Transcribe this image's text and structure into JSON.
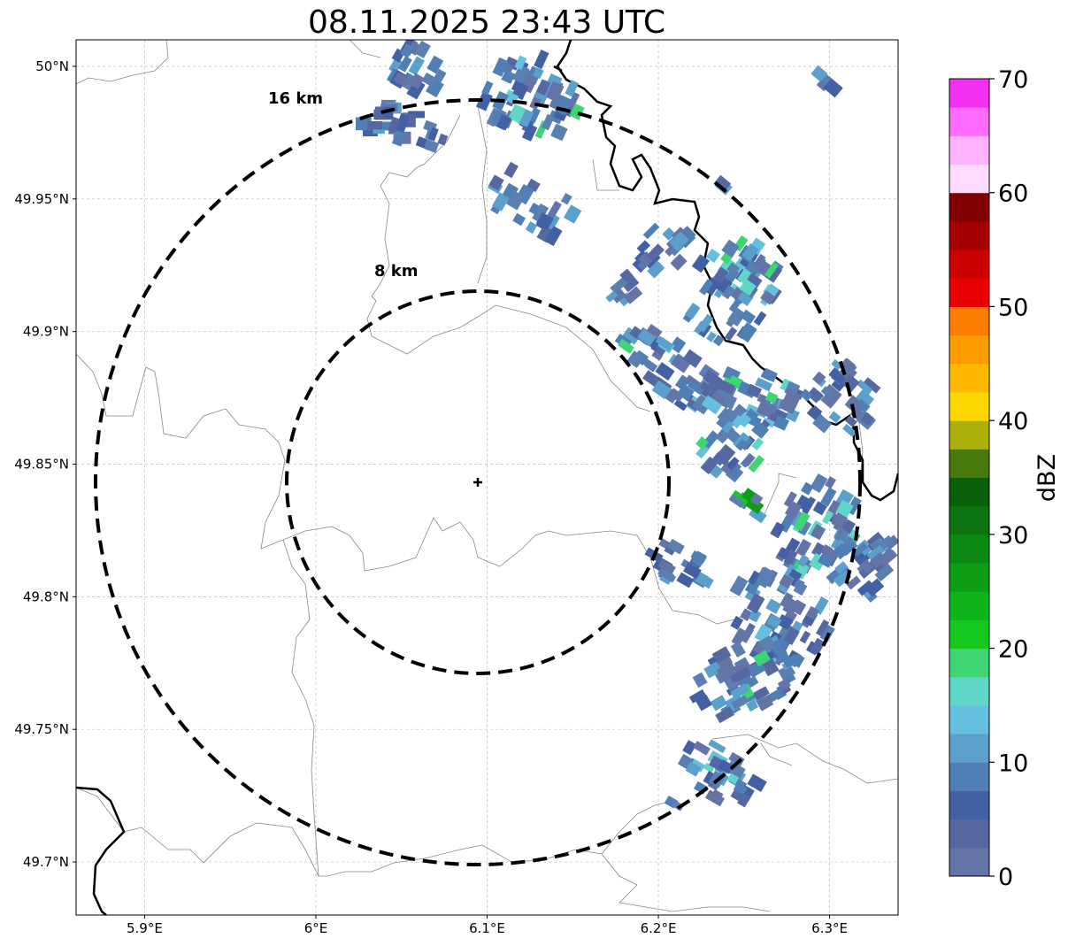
{
  "title": "08.11.2025 23:43 UTC",
  "map": {
    "lon_range": [
      5.86,
      6.34
    ],
    "lat_range": [
      49.68,
      50.01
    ],
    "x_ticks": [
      {
        "value": 5.9,
        "label": "5.9°E"
      },
      {
        "value": 6.0,
        "label": "6°E"
      },
      {
        "value": 6.1,
        "label": "6.1°E"
      },
      {
        "value": 6.2,
        "label": "6.2°E"
      },
      {
        "value": 6.3,
        "label": "6.3°E"
      }
    ],
    "y_ticks": [
      {
        "value": 50.0,
        "label": "50°N"
      },
      {
        "value": 49.95,
        "label": "49.95°N"
      },
      {
        "value": 49.9,
        "label": "49.9°N"
      },
      {
        "value": 49.85,
        "label": "49.85°N"
      },
      {
        "value": 49.8,
        "label": "49.8°N"
      },
      {
        "value": 49.75,
        "label": "49.75°N"
      },
      {
        "value": 49.7,
        "label": "49.7°N"
      }
    ],
    "grid": true,
    "radar_site": {
      "lon": 6.095,
      "lat": 49.843
    },
    "range_rings": [
      {
        "radius_km": 8,
        "label": "8 km"
      },
      {
        "radius_km": 16,
        "label": "16 km"
      }
    ]
  },
  "colorbar": {
    "label": "dBZ",
    "min": 0,
    "max": 70,
    "tick_labels": [
      "0",
      "10",
      "20",
      "30",
      "40",
      "50",
      "60",
      "70"
    ],
    "colors": [
      "#6474a6",
      "#5568a2",
      "#4460a4",
      "#4f7fb5",
      "#5b9fcb",
      "#64c0de",
      "#5fd6c8",
      "#3dd672",
      "#14c81e",
      "#0fb41a",
      "#0e9e16",
      "#0c8913",
      "#0b7411",
      "#085f0c",
      "#477a0a",
      "#aeb00a",
      "#fed700",
      "#ffb800",
      "#ff9c00",
      "#ff7e00",
      "#e80000",
      "#cc0000",
      "#a30000",
      "#7e0000",
      "#ffdcff",
      "#ffb2ff",
      "#ff6cff",
      "#f231f2"
    ]
  }
}
